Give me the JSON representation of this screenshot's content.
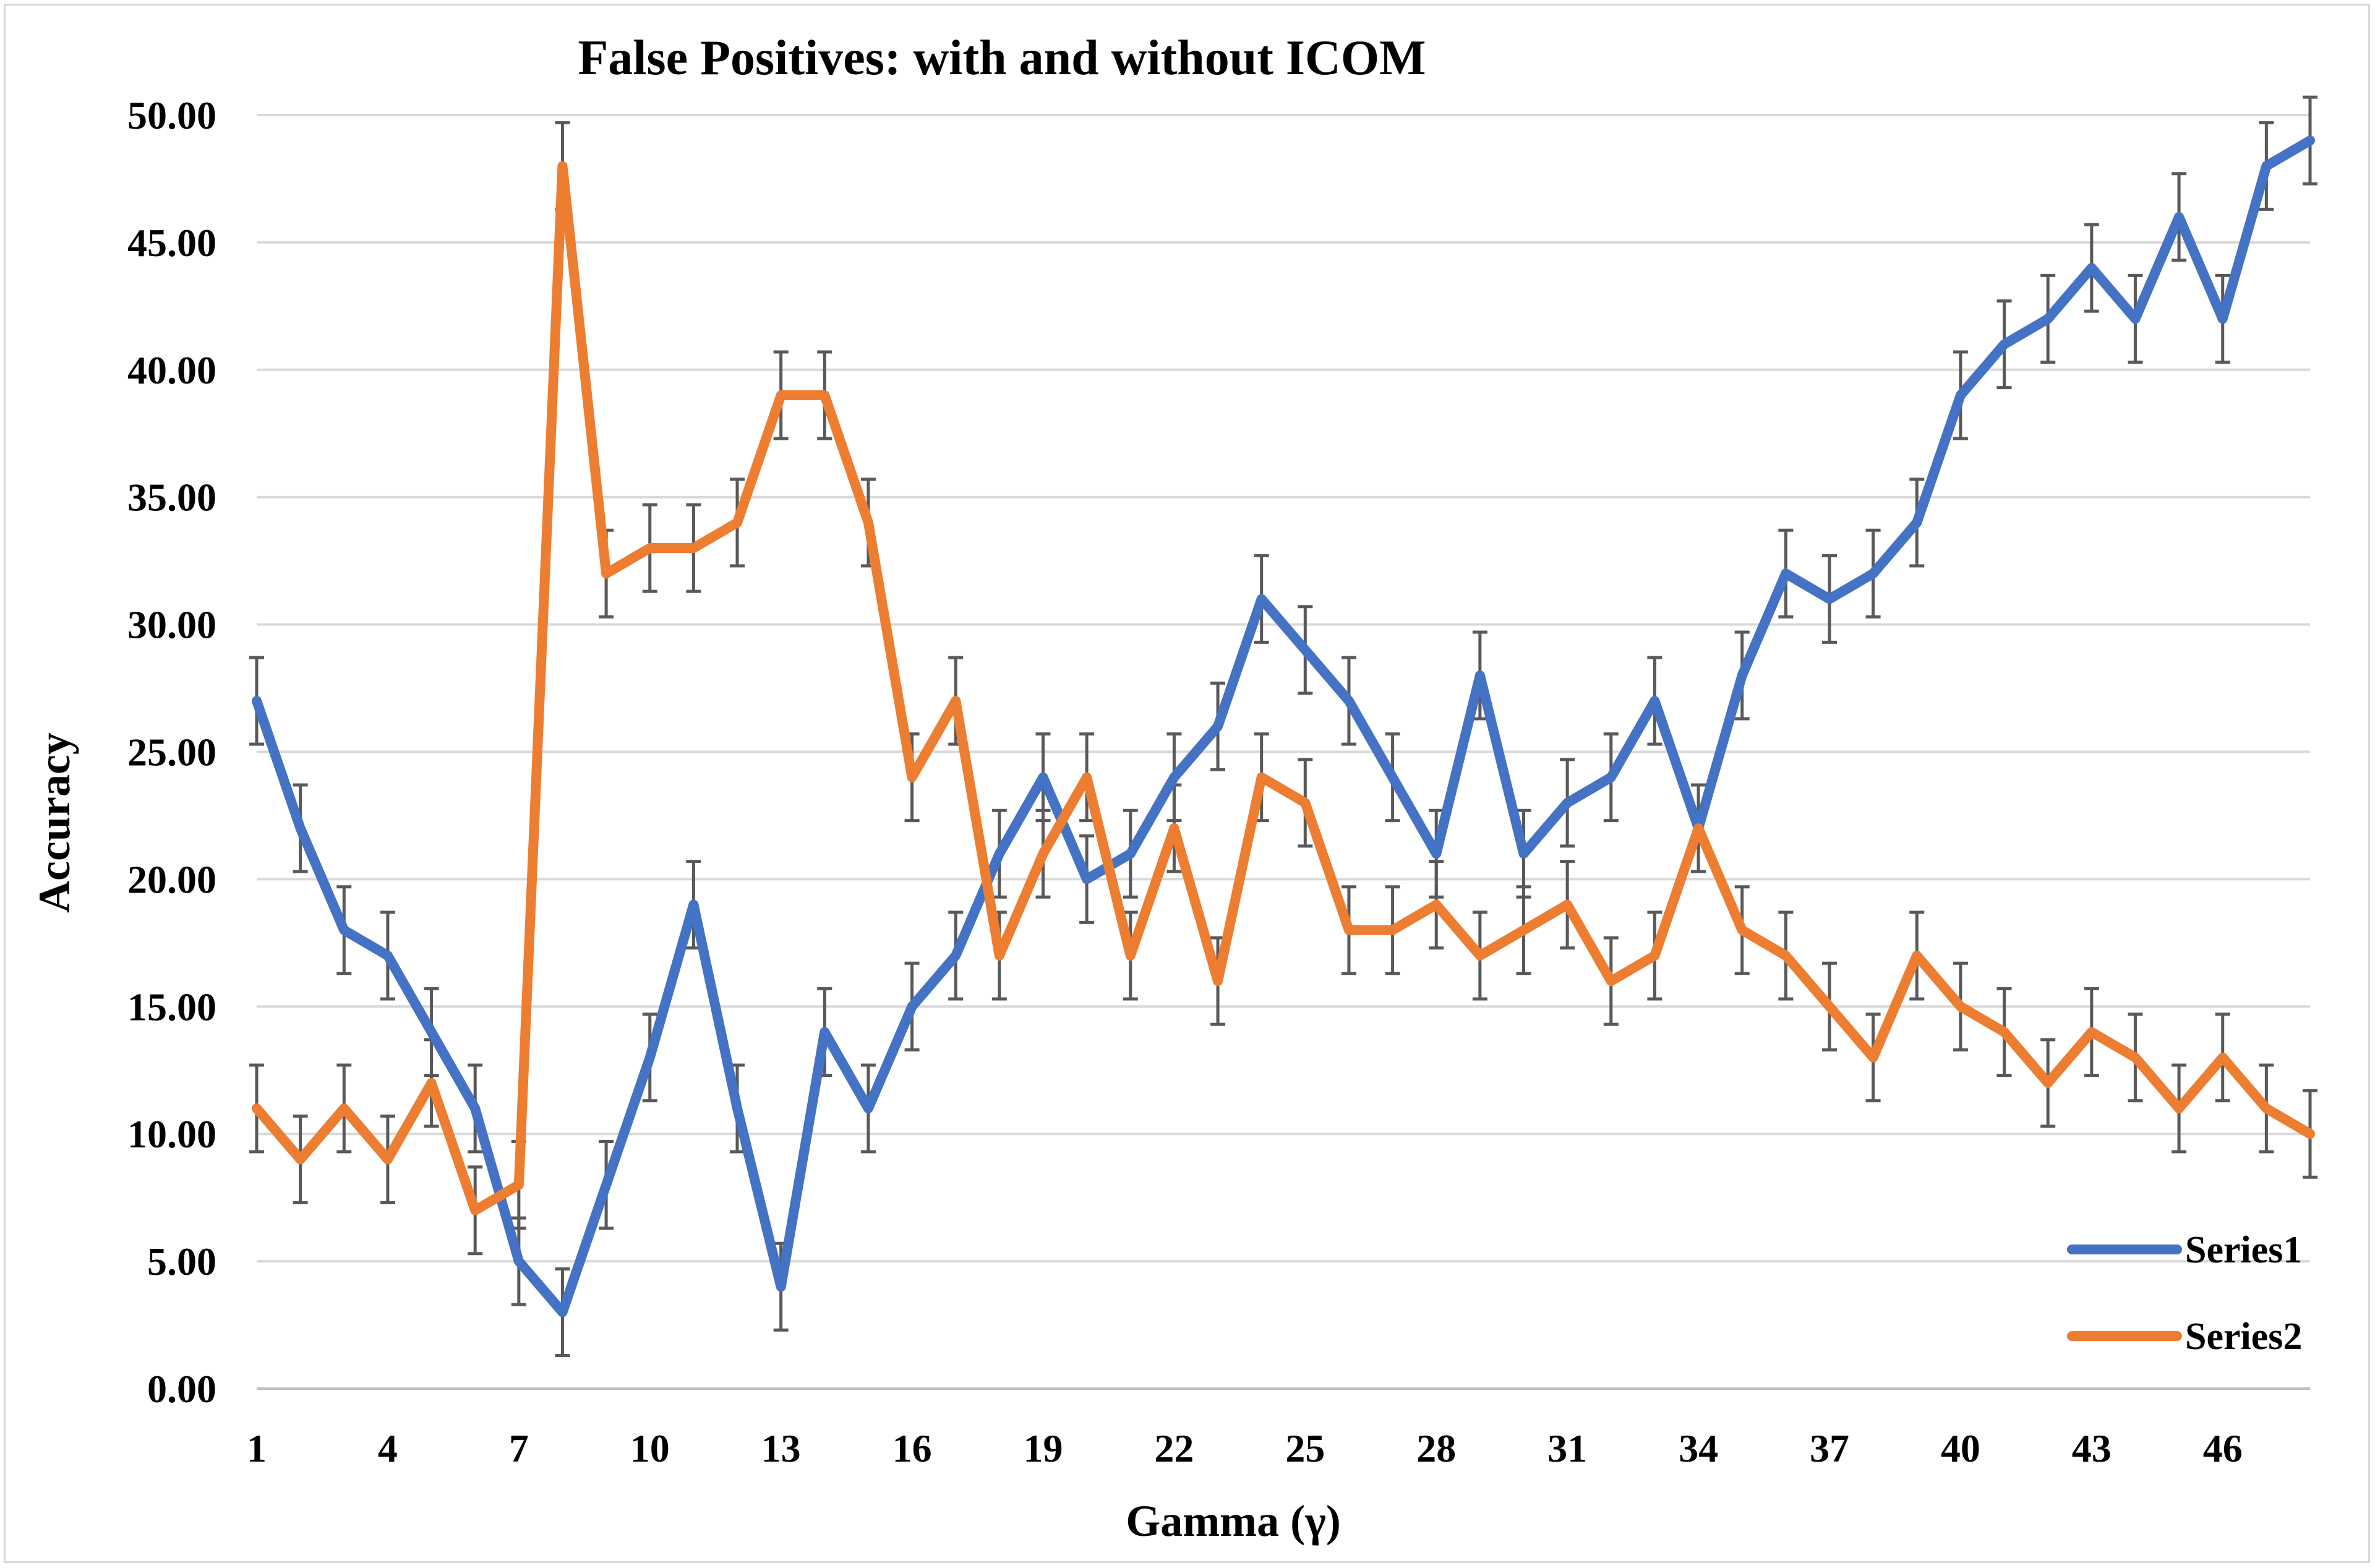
{
  "chart_data": {
    "type": "line",
    "title": "False Positives:  with and without ICOM",
    "xlabel": "Gamma (γ)",
    "ylabel": "Accuracy",
    "ylim": [
      0,
      50
    ],
    "y_ticks": [
      "0.00",
      "5.00",
      "10.00",
      "15.00",
      "20.00",
      "25.00",
      "30.00",
      "35.00",
      "40.00",
      "45.00",
      "50.00"
    ],
    "x_tick_labels": [
      "1",
      "4",
      "7",
      "10",
      "13",
      "16",
      "19",
      "22",
      "25",
      "28",
      "31",
      "34",
      "37",
      "40",
      "43",
      "46"
    ],
    "grid": true,
    "legend_position": "bottom-right",
    "x": [
      1,
      2,
      3,
      4,
      5,
      6,
      7,
      8,
      9,
      10,
      11,
      12,
      13,
      14,
      15,
      16,
      17,
      18,
      19,
      20,
      21,
      22,
      23,
      24,
      25,
      26,
      27,
      28,
      29,
      30,
      31,
      32,
      33,
      34,
      35,
      36,
      37,
      38,
      39,
      40,
      41,
      42,
      43,
      44,
      45,
      46,
      47,
      48
    ],
    "error_bar": 1.7,
    "series": [
      {
        "name": "Series1",
        "color": "#4472c4",
        "values": [
          27,
          22,
          18,
          17,
          14,
          11,
          5,
          3,
          8,
          13,
          19,
          11,
          4,
          14,
          11,
          15,
          17,
          21,
          24,
          20,
          21,
          24,
          26,
          31,
          29,
          27,
          24,
          21,
          28,
          21,
          23,
          24,
          27,
          22,
          28,
          32,
          31,
          32,
          34,
          39,
          41,
          42,
          44,
          42,
          46,
          42,
          48,
          49
        ]
      },
      {
        "name": "Series2",
        "color": "#ed7d31",
        "values": [
          11,
          9,
          11,
          9,
          12,
          7,
          8,
          48,
          32,
          33,
          33,
          34,
          39,
          39,
          34,
          24,
          27,
          17,
          21,
          24,
          17,
          22,
          16,
          24,
          23,
          18,
          18,
          19,
          17,
          18,
          19,
          16,
          17,
          22,
          18,
          17,
          15,
          13,
          17,
          15,
          14,
          12,
          14,
          13,
          11,
          13,
          11,
          10
        ]
      }
    ]
  }
}
